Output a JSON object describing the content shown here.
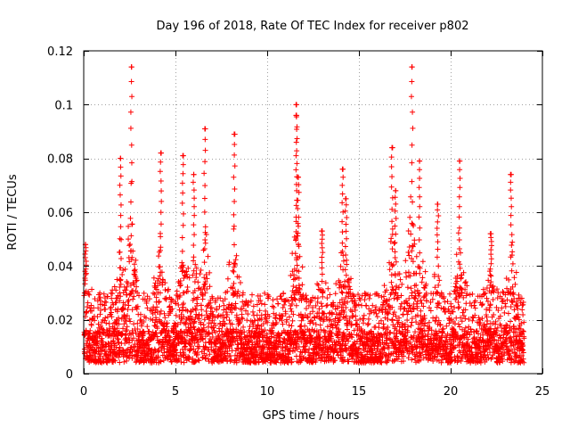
{
  "chart_data": {
    "type": "scatter",
    "title": "Day 196 of 2018, Rate Of TEC Index for receiver p802",
    "xlabel": "GPS time / hours",
    "ylabel": "ROTI / TECUs",
    "xlim": [
      0,
      25
    ],
    "ylim": [
      0,
      0.12
    ],
    "xticks": [
      0,
      5,
      10,
      15,
      20,
      25
    ],
    "yticks": [
      0,
      0.02,
      0.04,
      0.06,
      0.08,
      0.1,
      0.12
    ],
    "xtick_labels": [
      "0",
      "5",
      "10",
      "15",
      "20",
      "25"
    ],
    "ytick_labels": [
      "0",
      "0.02",
      "0.04",
      "0.06",
      "0.08",
      "0.1",
      "0.12"
    ],
    "grid": true,
    "marker": "+",
    "color": "#ff0000",
    "x_data_range": [
      0,
      24
    ],
    "baseline_band": [
      0.004,
      0.03
    ],
    "series": [
      {
        "name": "ROTI",
        "peaks": [
          {
            "x": 0.1,
            "y": 0.048
          },
          {
            "x": 2.0,
            "y": 0.08
          },
          {
            "x": 2.6,
            "y": 0.114
          },
          {
            "x": 4.2,
            "y": 0.082
          },
          {
            "x": 5.4,
            "y": 0.081
          },
          {
            "x": 6.0,
            "y": 0.074
          },
          {
            "x": 6.6,
            "y": 0.091
          },
          {
            "x": 8.2,
            "y": 0.089
          },
          {
            "x": 11.6,
            "y": 0.1
          },
          {
            "x": 11.6,
            "y": 0.096
          },
          {
            "x": 11.7,
            "y": 0.073
          },
          {
            "x": 13.0,
            "y": 0.053
          },
          {
            "x": 14.1,
            "y": 0.076
          },
          {
            "x": 14.3,
            "y": 0.065
          },
          {
            "x": 16.8,
            "y": 0.084
          },
          {
            "x": 17.0,
            "y": 0.068
          },
          {
            "x": 17.9,
            "y": 0.114
          },
          {
            "x": 18.3,
            "y": 0.079
          },
          {
            "x": 19.3,
            "y": 0.063
          },
          {
            "x": 20.5,
            "y": 0.079
          },
          {
            "x": 22.2,
            "y": 0.052
          },
          {
            "x": 23.3,
            "y": 0.074
          }
        ]
      }
    ]
  }
}
